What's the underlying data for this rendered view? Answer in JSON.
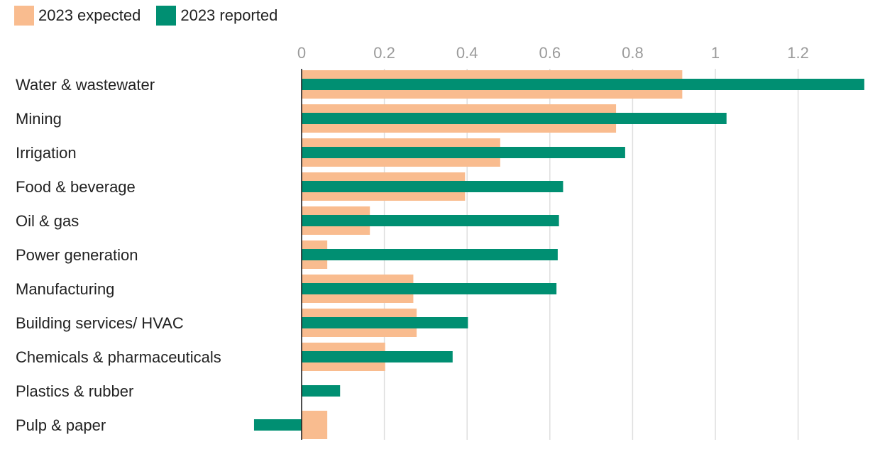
{
  "chart_data": {
    "type": "bar",
    "orientation": "horizontal",
    "legend_position": "top-left",
    "grid": true,
    "xlim": [
      -0.115,
      1.36
    ],
    "ticks": [
      "0",
      "0.2",
      "0.4",
      "0.6",
      "0.8",
      "1",
      "1.2"
    ],
    "tick_values": [
      0,
      0.2,
      0.4,
      0.6,
      0.8,
      1.0,
      1.2
    ],
    "categories": [
      "Water & wastewater",
      "Mining",
      "Irrigation",
      "Food & beverage",
      "Oil & gas",
      "Power generation",
      "Manufacturing",
      "Building services/ HVAC",
      "Chemicals & pharmaceuticals",
      "Plastics & rubber",
      "Pulp & paper"
    ],
    "series": [
      {
        "name": "2023 expected",
        "color": "#F9BC8F",
        "values": [
          0.92,
          0.76,
          0.48,
          0.395,
          0.165,
          0.062,
          0.27,
          0.278,
          0.202,
          0.0,
          0.062
        ]
      },
      {
        "name": "2023 reported",
        "color": "#008F72",
        "values": [
          1.36,
          1.027,
          0.782,
          0.632,
          0.622,
          0.619,
          0.616,
          0.402,
          0.365,
          0.093,
          -0.115
        ]
      }
    ]
  }
}
